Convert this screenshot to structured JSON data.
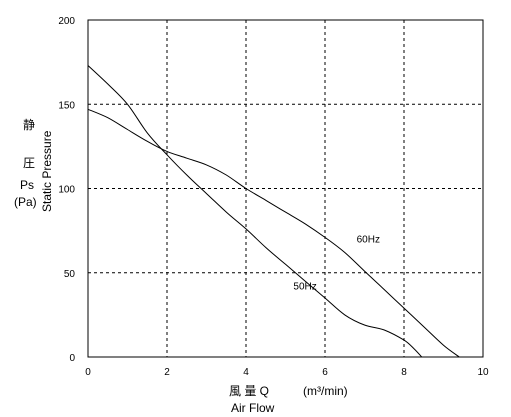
{
  "chart_data": {
    "type": "line",
    "xlim": [
      0,
      10
    ],
    "ylim": [
      0,
      200
    ],
    "x_ticks": [
      "0",
      "2",
      "4",
      "6",
      "8",
      "10"
    ],
    "y_ticks": [
      "0",
      "50",
      "100",
      "150",
      "200"
    ],
    "grid": "dashed",
    "legend": "none",
    "xlabel_cjk": "風 量 Q",
    "xlabel_unit": "(m³/min)",
    "xlabel_en": "Air Flow",
    "ylabel_cjk_1": "静",
    "ylabel_cjk_2": "圧",
    "ylabel_symbol": "Ps",
    "ylabel_unit": "(Pa)",
    "ylabel_en": "Static Pressure",
    "series": [
      {
        "name": "60Hz",
        "x": [
          0,
          0.5,
          1.0,
          1.5,
          2.0,
          2.5,
          3.0,
          3.5,
          4.0,
          4.5,
          5.0,
          5.5,
          6.0,
          6.5,
          7.0,
          7.5,
          8.0,
          8.5,
          9.0,
          9.4
        ],
        "y": [
          147,
          142,
          135,
          128,
          122,
          118,
          114,
          108,
          100,
          93,
          86,
          79,
          71,
          62,
          51,
          40,
          29,
          18,
          7,
          0
        ]
      },
      {
        "name": "50Hz",
        "x": [
          0,
          0.5,
          1.0,
          1.5,
          2.0,
          2.5,
          3.0,
          3.5,
          4.0,
          4.5,
          5.0,
          5.5,
          6.0,
          6.5,
          7.0,
          7.5,
          8.0,
          8.25,
          8.45
        ],
        "y": [
          173,
          162,
          150,
          133,
          120,
          108,
          97,
          86,
          76,
          65,
          55,
          45,
          35,
          25,
          19,
          16,
          10,
          5,
          0
        ]
      }
    ],
    "annotations": [
      {
        "text": "60Hz",
        "x": 6.8,
        "y": 68
      },
      {
        "text": "50Hz",
        "x": 5.2,
        "y": 40
      }
    ]
  }
}
